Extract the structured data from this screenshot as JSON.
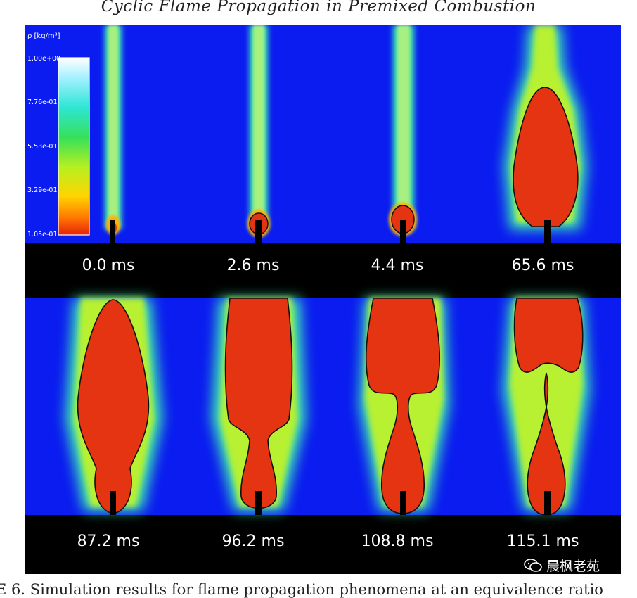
{
  "title": "Cyclic Flame Propagation in Premixed Combustion",
  "colorbar": {
    "title": "ρ [kg/m³]",
    "ticks": [
      "1.00e+00",
      "7.76e-01",
      "5.53e-01",
      "3.29e-01",
      "1.05e-01"
    ]
  },
  "panels": [
    {
      "time": "0.0 ms"
    },
    {
      "time": "2.6 ms"
    },
    {
      "time": "4.4 ms"
    },
    {
      "time": "65.6 ms"
    },
    {
      "time": "87.2 ms"
    },
    {
      "time": "96.2 ms"
    },
    {
      "time": "108.8 ms"
    },
    {
      "time": "115.1 ms"
    }
  ],
  "watermark": "晨枫老苑",
  "caption": "E 6. Simulation results for flame propagation phenomena at an equivalence ratio",
  "colors": {
    "background": "#0a1cf0",
    "flame": "#e43412",
    "label_bar": "#000000"
  }
}
